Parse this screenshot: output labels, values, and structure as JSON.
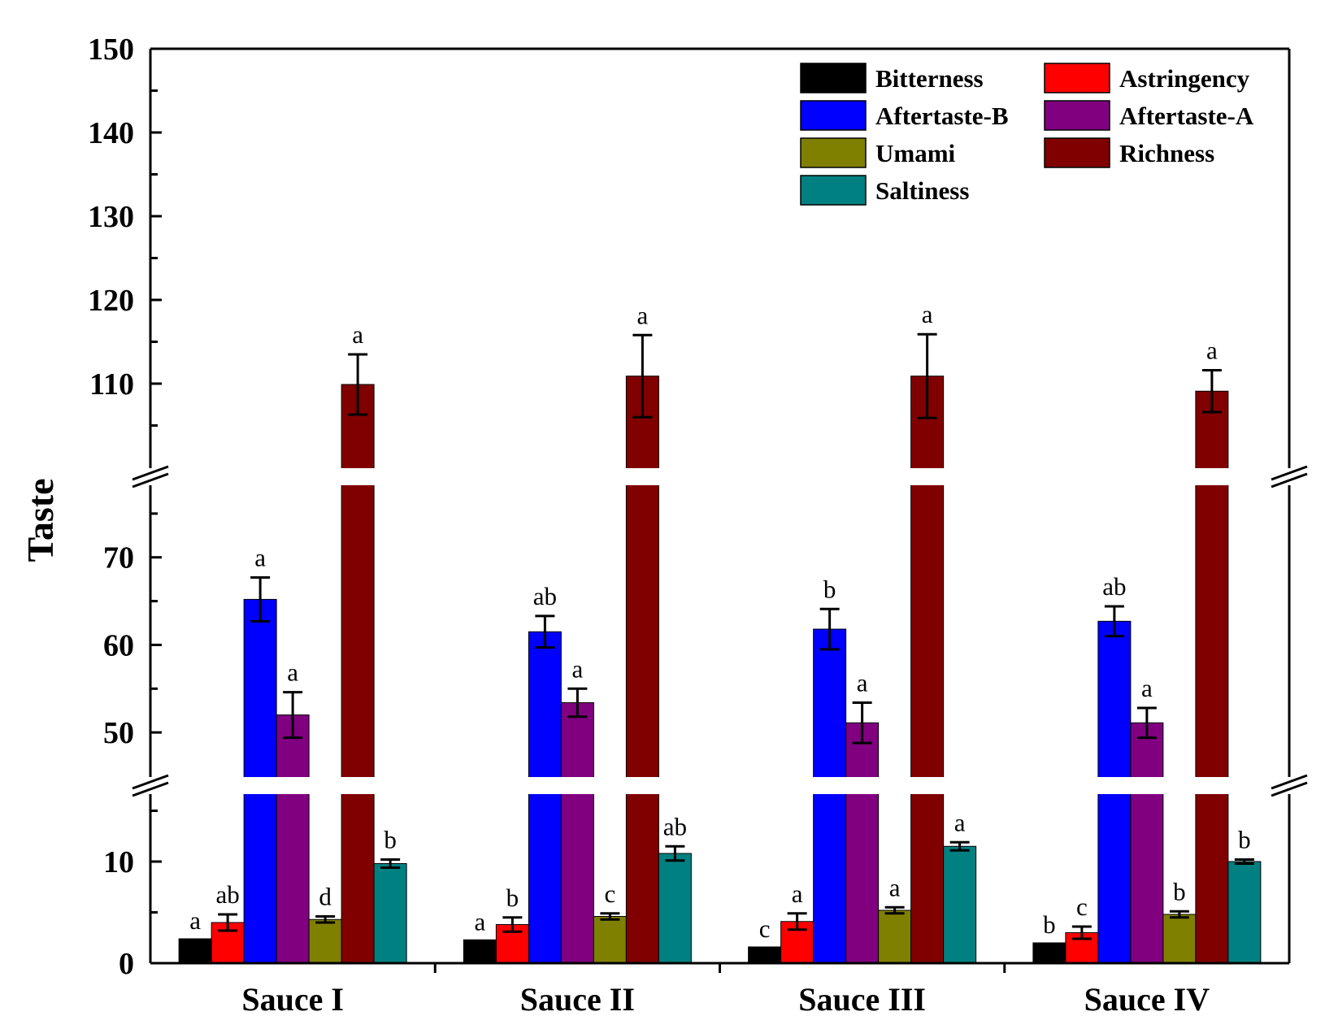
{
  "chart_data": {
    "type": "bar",
    "title": "",
    "xlabel": "",
    "ylabel": "Taste",
    "categories": [
      "Sauce I",
      "Sauce II",
      "Sauce III",
      "Sauce IV"
    ],
    "y_segments": [
      {
        "range": [
          0,
          20
        ],
        "ticks": [
          0,
          10
        ]
      },
      {
        "range": [
          45,
          80
        ],
        "ticks": [
          50,
          60,
          70
        ]
      },
      {
        "range": [
          100,
          150
        ],
        "ticks": [
          110,
          120,
          130,
          140,
          150
        ]
      }
    ],
    "series": [
      {
        "name": "Bitterness",
        "color": "#000000",
        "values": [
          2.4,
          2.3,
          1.6,
          2.0
        ],
        "errors": [
          0,
          0,
          0,
          0
        ],
        "labels": [
          "a",
          "a",
          "c",
          "b"
        ]
      },
      {
        "name": "Astringency",
        "color": "#ff0000",
        "values": [
          4.0,
          3.8,
          4.1,
          3.0
        ],
        "errors": [
          0.8,
          0.7,
          0.8,
          0.6
        ],
        "labels": [
          "ab",
          "b",
          "a",
          "c"
        ]
      },
      {
        "name": "Aftertaste-B",
        "color": "#0000ff",
        "values": [
          65.2,
          61.5,
          61.8,
          62.7
        ],
        "errors": [
          2.5,
          1.8,
          2.3,
          1.7
        ],
        "labels": [
          "a",
          "ab",
          "b",
          "ab"
        ]
      },
      {
        "name": "Aftertaste-A",
        "color": "#800080",
        "values": [
          52.0,
          53.4,
          51.1,
          51.1
        ],
        "errors": [
          2.6,
          1.6,
          2.3,
          1.7
        ],
        "labels": [
          "a",
          "a",
          "a",
          "a"
        ]
      },
      {
        "name": "Umami",
        "color": "#808000",
        "values": [
          4.3,
          4.6,
          5.2,
          4.8
        ],
        "errors": [
          0.3,
          0.3,
          0.3,
          0.3
        ],
        "labels": [
          "d",
          "c",
          "a",
          "b"
        ]
      },
      {
        "name": "Richness",
        "color": "#800000",
        "values": [
          109.9,
          110.9,
          110.9,
          109.1
        ],
        "errors": [
          3.6,
          4.9,
          5.0,
          2.5
        ],
        "labels": [
          "a",
          "a",
          "a",
          "a"
        ]
      },
      {
        "name": "Saltiness",
        "color": "#008080",
        "values": [
          9.8,
          10.8,
          11.5,
          10.0
        ],
        "errors": [
          0.4,
          0.7,
          0.4,
          0.2
        ],
        "labels": [
          "b",
          "ab",
          "a",
          "b"
        ]
      }
    ],
    "legend_location": "top-right"
  }
}
